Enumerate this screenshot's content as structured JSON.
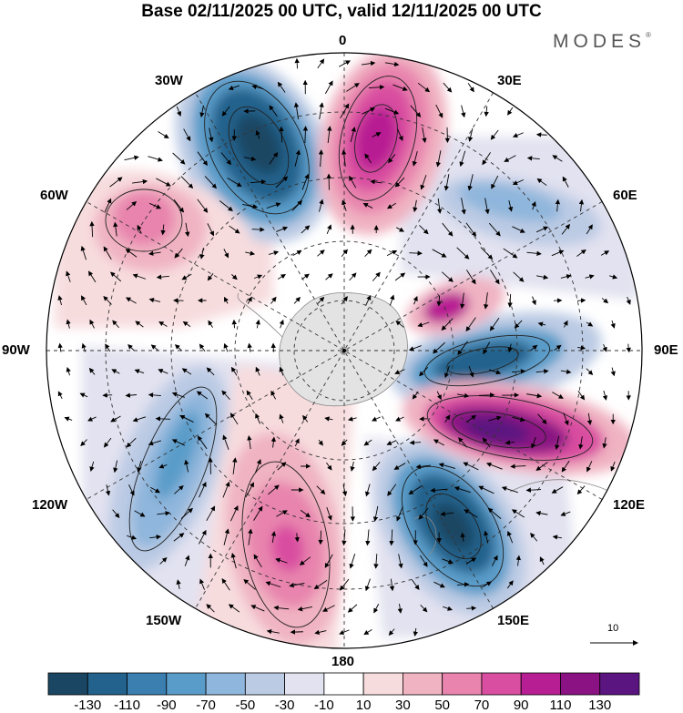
{
  "title": "Base 02/11/2025 00 UTC, valid 12/11/2025 00 UTC",
  "brand": "MODES",
  "brand_mark": "®",
  "longitude_labels": {
    "lon_0": "0",
    "lon_30e": "30E",
    "lon_60e": "60E",
    "lon_90e": "90E",
    "lon_120e": "120E",
    "lon_150e": "150E",
    "lon_180": "180",
    "lon_150w": "150W",
    "lon_120w": "120W",
    "lon_90w": "90W",
    "lon_60w": "60W",
    "lon_30w": "30W"
  },
  "colorbar": {
    "ticks": [
      "-130",
      "-110",
      "-90",
      "-70",
      "-50",
      "-30",
      "-10",
      "10",
      "30",
      "50",
      "70",
      "90",
      "110",
      "130"
    ],
    "colors": [
      "#1b4663",
      "#22628c",
      "#3a7fb0",
      "#5a9cc9",
      "#8fb6dc",
      "#bccbe4",
      "#e2e2f0",
      "#ffffff",
      "#f7dcde",
      "#f0b3c2",
      "#e884ad",
      "#d94ea0",
      "#b81e93",
      "#8a1283",
      "#5b1580"
    ]
  },
  "vector_scale_label": "10",
  "colors": {
    "blue_strong": "#22628c",
    "blue_mid": "#5a9cc9",
    "blue_light": "#bccbe4",
    "pink_light": "#f0b3c2",
    "pink_mid": "#e884ad",
    "magenta": "#b81e93",
    "purple": "#5b1580",
    "ice": "#e3e3e3"
  }
}
